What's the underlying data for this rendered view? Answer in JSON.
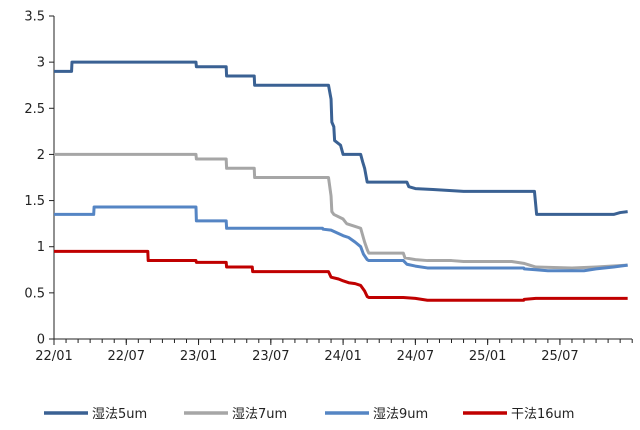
{
  "chart_data": {
    "type": "line",
    "title": "",
    "xlabel": "",
    "ylabel": "",
    "ylim": [
      0,
      3.5
    ],
    "yticks": [
      "0",
      "0.5",
      "1",
      "1.5",
      "2",
      "2.5",
      "3",
      "3.5"
    ],
    "xticks": [
      "22/01",
      "22/07",
      "23/01",
      "23/07",
      "24/01",
      "24/07",
      "25/01",
      "25/07"
    ],
    "x_range": [
      "2022-01",
      "2025-12"
    ],
    "grid": false,
    "legend_position": "bottom",
    "series": [
      {
        "name": "湿法5um",
        "color": "#3a6193",
        "points": [
          [
            "2022-01-01",
            2.9
          ],
          [
            "2022-02-15",
            2.9
          ],
          [
            "2022-02-16",
            3.0
          ],
          [
            "2022-12-25",
            3.0
          ],
          [
            "2022-12-26",
            2.95
          ],
          [
            "2023-03-10",
            2.95
          ],
          [
            "2023-03-11",
            2.85
          ],
          [
            "2023-05-20",
            2.85
          ],
          [
            "2023-05-21",
            2.75
          ],
          [
            "2023-11-25",
            2.75
          ],
          [
            "2023-12-01",
            2.6
          ],
          [
            "2023-12-03",
            2.35
          ],
          [
            "2023-12-08",
            2.3
          ],
          [
            "2023-12-10",
            2.15
          ],
          [
            "2023-12-25",
            2.1
          ],
          [
            "2024-01-01",
            2.0
          ],
          [
            "2024-02-15",
            2.0
          ],
          [
            "2024-02-20",
            1.92
          ],
          [
            "2024-02-25",
            1.85
          ],
          [
            "2024-03-01",
            1.7
          ],
          [
            "2024-06-10",
            1.7
          ],
          [
            "2024-06-15",
            1.65
          ],
          [
            "2024-07-01",
            1.63
          ],
          [
            "2024-08-15",
            1.62
          ],
          [
            "2024-11-01",
            1.6
          ],
          [
            "2025-04-28",
            1.6
          ],
          [
            "2025-05-03",
            1.35
          ],
          [
            "2025-11-15",
            1.35
          ],
          [
            "2025-12-01",
            1.37
          ],
          [
            "2025-12-20",
            1.38
          ]
        ]
      },
      {
        "name": "湿法7um",
        "color": "#a6a6a6",
        "points": [
          [
            "2022-01-01",
            2.0
          ],
          [
            "2022-12-25",
            2.0
          ],
          [
            "2022-12-26",
            1.95
          ],
          [
            "2023-03-10",
            1.95
          ],
          [
            "2023-03-11",
            1.85
          ],
          [
            "2023-05-20",
            1.85
          ],
          [
            "2023-05-21",
            1.75
          ],
          [
            "2023-11-25",
            1.75
          ],
          [
            "2023-12-01",
            1.55
          ],
          [
            "2023-12-03",
            1.38
          ],
          [
            "2023-12-08",
            1.35
          ],
          [
            "2024-01-01",
            1.3
          ],
          [
            "2024-01-10",
            1.25
          ],
          [
            "2024-02-01",
            1.22
          ],
          [
            "2024-02-15",
            1.2
          ],
          [
            "2024-02-25",
            1.05
          ],
          [
            "2024-03-01",
            0.97
          ],
          [
            "2024-03-05",
            0.93
          ],
          [
            "2024-06-01",
            0.93
          ],
          [
            "2024-06-05",
            0.88
          ],
          [
            "2024-07-01",
            0.86
          ],
          [
            "2024-08-01",
            0.85
          ],
          [
            "2024-10-01",
            0.85
          ],
          [
            "2024-11-01",
            0.84
          ],
          [
            "2025-03-01",
            0.84
          ],
          [
            "2025-04-01",
            0.82
          ],
          [
            "2025-05-01",
            0.78
          ],
          [
            "2025-08-01",
            0.77
          ],
          [
            "2025-10-01",
            0.78
          ],
          [
            "2025-12-20",
            0.8
          ]
        ]
      },
      {
        "name": "湿法9um",
        "color": "#5585c4",
        "points": [
          [
            "2022-01-01",
            1.35
          ],
          [
            "2022-04-10",
            1.35
          ],
          [
            "2022-04-11",
            1.43
          ],
          [
            "2022-12-25",
            1.43
          ],
          [
            "2022-12-26",
            1.28
          ],
          [
            "2023-03-10",
            1.28
          ],
          [
            "2023-03-11",
            1.2
          ],
          [
            "2023-11-10",
            1.2
          ],
          [
            "2023-11-11",
            1.19
          ],
          [
            "2023-12-01",
            1.18
          ],
          [
            "2024-01-01",
            1.12
          ],
          [
            "2024-01-15",
            1.1
          ],
          [
            "2024-02-01",
            1.05
          ],
          [
            "2024-02-15",
            1.0
          ],
          [
            "2024-02-22",
            0.92
          ],
          [
            "2024-03-01",
            0.86
          ],
          [
            "2024-03-05",
            0.85
          ],
          [
            "2024-06-01",
            0.85
          ],
          [
            "2024-06-10",
            0.81
          ],
          [
            "2024-07-01",
            0.79
          ],
          [
            "2024-08-01",
            0.77
          ],
          [
            "2025-04-01",
            0.77
          ],
          [
            "2025-04-02",
            0.76
          ],
          [
            "2025-05-01",
            0.75
          ],
          [
            "2025-06-01",
            0.74
          ],
          [
            "2025-09-01",
            0.74
          ],
          [
            "2025-10-01",
            0.76
          ],
          [
            "2025-11-15",
            0.78
          ],
          [
            "2025-12-20",
            0.8
          ]
        ]
      },
      {
        "name": "干法16um",
        "color": "#c00000",
        "points": [
          [
            "2022-01-01",
            0.95
          ],
          [
            "2022-08-25",
            0.95
          ],
          [
            "2022-08-26",
            0.85
          ],
          [
            "2022-12-25",
            0.85
          ],
          [
            "2022-12-26",
            0.83
          ],
          [
            "2023-03-10",
            0.83
          ],
          [
            "2023-03-11",
            0.78
          ],
          [
            "2023-05-15",
            0.78
          ],
          [
            "2023-05-16",
            0.73
          ],
          [
            "2023-11-25",
            0.73
          ],
          [
            "2023-12-01",
            0.67
          ],
          [
            "2023-12-20",
            0.65
          ],
          [
            "2024-01-01",
            0.63
          ],
          [
            "2024-01-15",
            0.61
          ],
          [
            "2024-02-01",
            0.6
          ],
          [
            "2024-02-15",
            0.58
          ],
          [
            "2024-02-25",
            0.52
          ],
          [
            "2024-03-01",
            0.46
          ],
          [
            "2024-03-05",
            0.45
          ],
          [
            "2024-06-01",
            0.45
          ],
          [
            "2024-07-01",
            0.44
          ],
          [
            "2024-08-01",
            0.42
          ],
          [
            "2025-04-01",
            0.42
          ],
          [
            "2025-04-02",
            0.43
          ],
          [
            "2025-05-01",
            0.44
          ],
          [
            "2025-12-20",
            0.44
          ]
        ]
      }
    ]
  }
}
